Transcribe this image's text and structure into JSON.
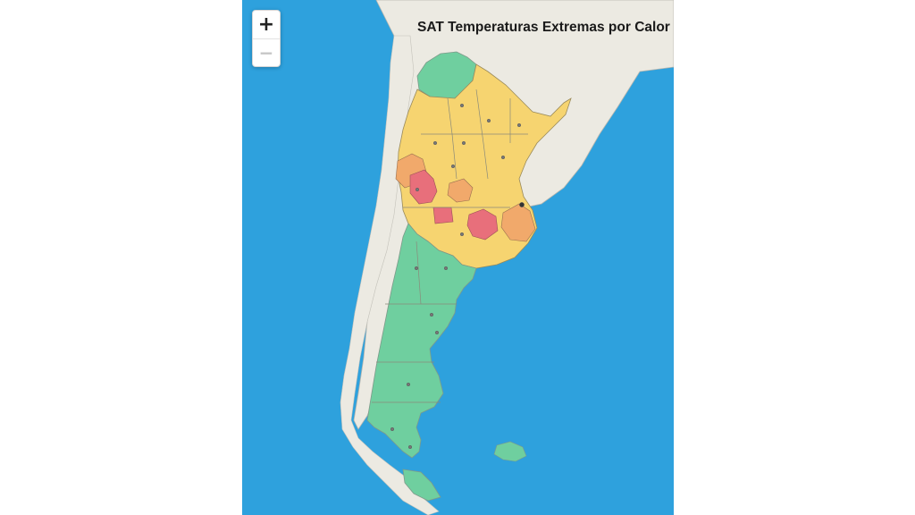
{
  "map": {
    "title": "SAT Temperaturas Extremas por Calor",
    "zoom_in_label": "+",
    "zoom_out_label": "−"
  },
  "colors": {
    "ocean": "#2ea1dd",
    "land": "#eceae2",
    "border": "#9a9a9a",
    "verde": "#6fcf9f",
    "amarillo": "#f6d470",
    "naranja": "#f1a96b",
    "rojo": "#e86f7b"
  },
  "alert_levels": [
    "verde",
    "amarillo",
    "naranja",
    "rojo"
  ]
}
